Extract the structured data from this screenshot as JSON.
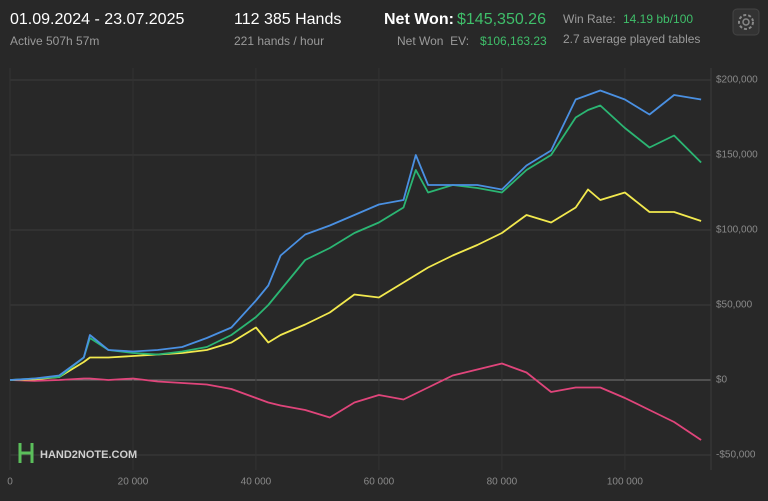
{
  "header": {
    "date_range": "01.09.2024 - 23.07.2025",
    "active": "Active 507h 57m",
    "hands": "112 385 Hands",
    "hands_per_hour": "221 hands / hour",
    "net_won_label": "Net Won:",
    "net_won": "$145,350.26",
    "net_won_ev_label": "Net Won  EV:",
    "net_won_ev": "$106,163.23",
    "win_rate_label": "Win Rate:",
    "win_rate": "14.19 bb/100",
    "tables": "2.7 average played tables"
  },
  "watermark": "HAND2NOTE.COM",
  "chart_data": {
    "type": "line",
    "x": [
      0,
      4000,
      8000,
      12000,
      13000,
      16000,
      20000,
      24000,
      28000,
      32000,
      36000,
      40000,
      42000,
      44000,
      48000,
      52000,
      56000,
      60000,
      64000,
      66000,
      68000,
      72000,
      76000,
      80000,
      84000,
      88000,
      92000,
      94000,
      96000,
      100000,
      104000,
      108000,
      112385
    ],
    "series": [
      {
        "color": "#4a90e2",
        "values": [
          0,
          1000,
          3000,
          15000,
          30000,
          20000,
          19000,
          20000,
          22000,
          28000,
          35000,
          53000,
          63000,
          83000,
          97000,
          103000,
          110000,
          117000,
          120000,
          150000,
          130000,
          130000,
          130000,
          127000,
          143000,
          153000,
          187000,
          190000,
          193000,
          187000,
          177000,
          190000,
          187000
        ]
      },
      {
        "color": "#2bb673",
        "values": [
          0,
          1000,
          2000,
          15000,
          28000,
          20000,
          18000,
          17000,
          19000,
          22000,
          30000,
          42000,
          50000,
          60000,
          80000,
          88000,
          98000,
          105000,
          115000,
          140000,
          125000,
          130000,
          128000,
          125000,
          140000,
          150000,
          175000,
          180000,
          183000,
          168000,
          155000,
          163000,
          145000
        ]
      },
      {
        "color": "#f2e94e",
        "values": [
          0,
          500,
          2000,
          12000,
          15000,
          15000,
          16000,
          17000,
          18000,
          20000,
          25000,
          35000,
          25000,
          30000,
          37000,
          45000,
          57000,
          55000,
          65000,
          70000,
          75000,
          83000,
          90000,
          98000,
          110000,
          105000,
          115000,
          127000,
          120000,
          125000,
          112000,
          112000,
          106000
        ]
      },
      {
        "color": "#e0457b",
        "values": [
          0,
          -500,
          0,
          1000,
          1000,
          0,
          1000,
          -1000,
          -2000,
          -3000,
          -6000,
          -12000,
          -15000,
          -17000,
          -20000,
          -25000,
          -15000,
          -10000,
          -13000,
          -9000,
          -5000,
          3000,
          7000,
          11000,
          5000,
          -8000,
          -5000,
          -5000,
          -5000,
          -12000,
          -20000,
          -28000,
          -40000
        ]
      }
    ],
    "xlim": [
      0,
      114000
    ],
    "ylim": [
      -60000,
      208000
    ],
    "xticks": [
      0,
      {
        "value": 20000,
        "label": "20 000"
      },
      {
        "value": 40000,
        "label": "40 000"
      },
      {
        "value": 60000,
        "label": "60 000"
      },
      {
        "value": 80000,
        "label": "80 000"
      },
      {
        "value": 100000,
        "label": "100 000"
      }
    ],
    "yticks": [
      {
        "value": -50000,
        "label": "-$50,000"
      },
      {
        "value": 0,
        "label": "$0"
      },
      {
        "value": 50000,
        "label": "$50,000"
      },
      {
        "value": 100000,
        "label": "$100,000"
      },
      {
        "value": 150000,
        "label": "$150,000"
      },
      {
        "value": 200000,
        "label": "$200,000"
      }
    ],
    "grid": true
  }
}
